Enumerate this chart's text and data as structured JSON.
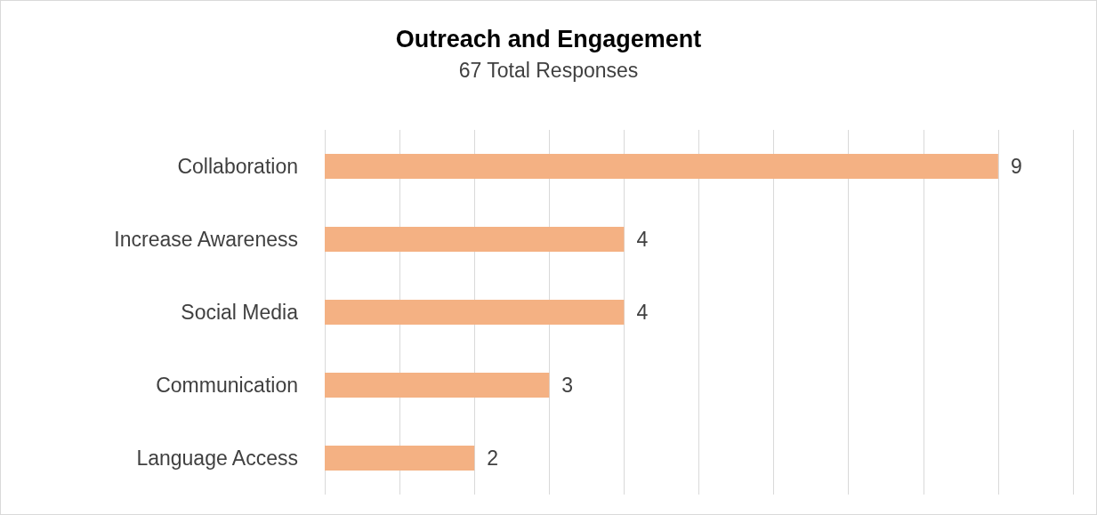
{
  "chart_data": {
    "type": "bar",
    "orientation": "horizontal",
    "title": "Outreach and Engagement",
    "subtitle": "67 Total Responses",
    "categories": [
      "Collaboration",
      "Increase Awareness",
      "Social Media",
      "Communication",
      "Language Access"
    ],
    "values": [
      9,
      4,
      4,
      3,
      2
    ],
    "color": "#f4b183",
    "data_labels": true,
    "xlim": [
      0,
      10
    ],
    "xticks": [
      {
        "value": 0,
        "label": null
      },
      {
        "value": 1,
        "label": null
      },
      {
        "value": 2,
        "label": null
      },
      {
        "value": 3,
        "label": null
      },
      {
        "value": 4,
        "label": null
      },
      {
        "value": 5,
        "label": null
      },
      {
        "value": 6,
        "label": null
      },
      {
        "value": 7,
        "label": null
      },
      {
        "value": 8,
        "label": null
      },
      {
        "value": 9,
        "label": null
      },
      {
        "value": 10,
        "label": null
      }
    ],
    "grid": "x",
    "tick_labels": "y"
  }
}
